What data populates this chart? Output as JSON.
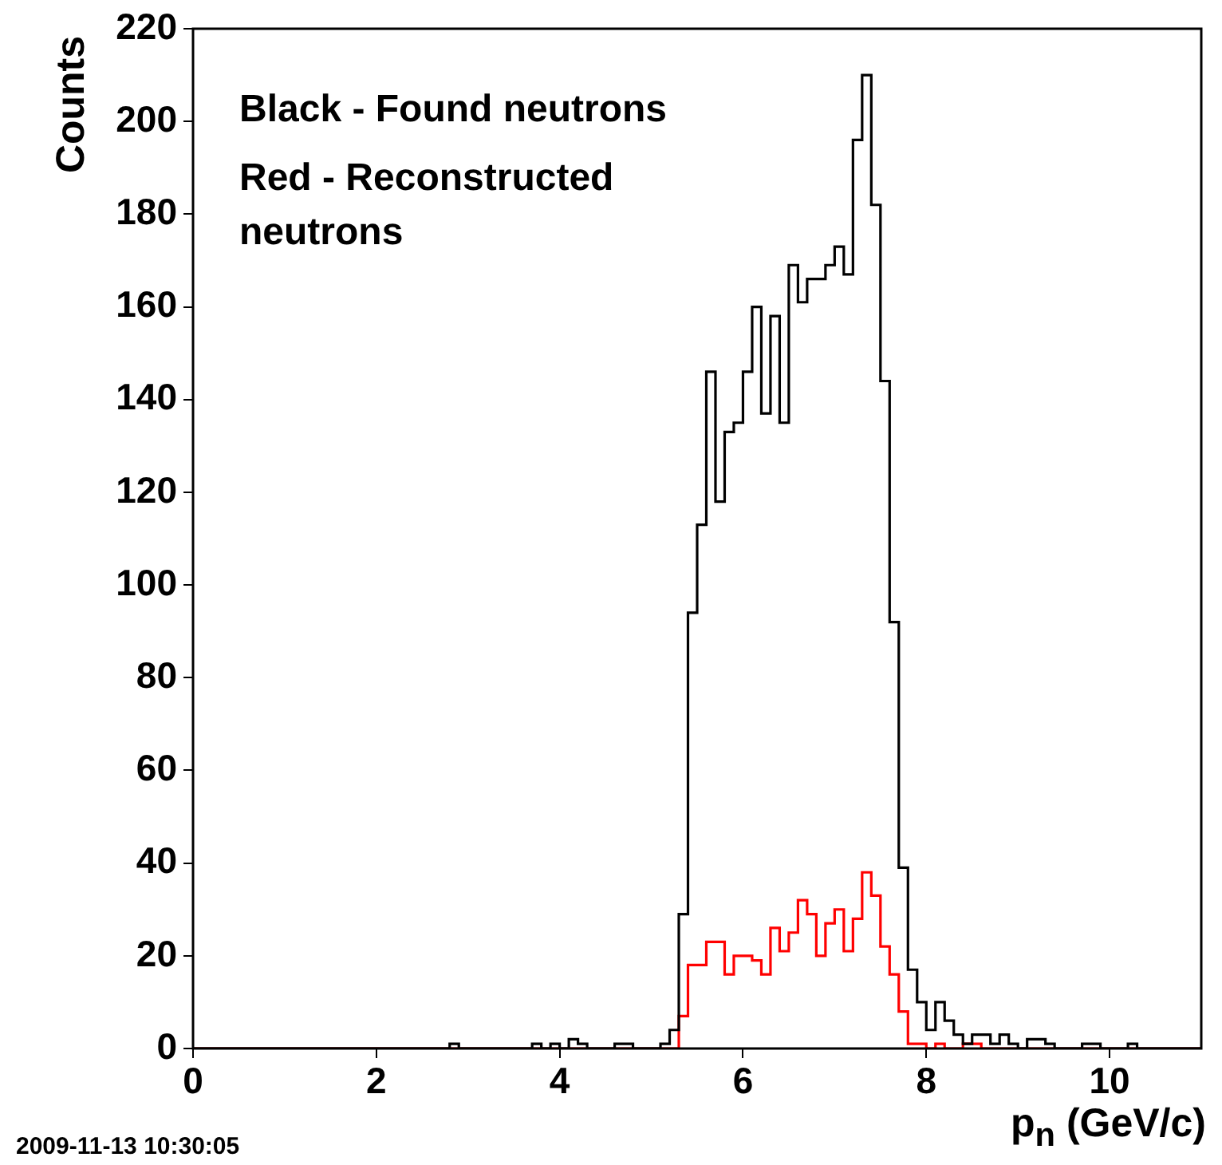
{
  "chart_data": {
    "type": "histogram",
    "xlabel": "p$_{n}$ (GeV/c)",
    "ylabel": "Counts",
    "annotations": [
      "Black - Found neutrons",
      "Red - Reconstructed neutrons",
      "2009-11-13 10:30:05"
    ],
    "bins": [
      0,
      0.1,
      0.2,
      0.3,
      0.4,
      0.5,
      0.6,
      0.7,
      0.8,
      0.9,
      1,
      1.1,
      1.2,
      1.3,
      1.4,
      1.5,
      1.6,
      1.7,
      1.8,
      1.9,
      2,
      2.1,
      2.2,
      2.3,
      2.4,
      2.5,
      2.6,
      2.7,
      2.8,
      2.9,
      3,
      3.1,
      3.2,
      3.3,
      3.4,
      3.5,
      3.6,
      3.7,
      3.8,
      3.9,
      4,
      4.1,
      4.2,
      4.3,
      4.4,
      4.5,
      4.6,
      4.7,
      4.8,
      4.9,
      5,
      5.1,
      5.2,
      5.3,
      5.4,
      5.5,
      5.6,
      5.7,
      5.8,
      5.9,
      6,
      6.1,
      6.2,
      6.3,
      6.4,
      6.5,
      6.6,
      6.7,
      6.8,
      6.9,
      7,
      7.1,
      7.2,
      7.3,
      7.4,
      7.5,
      7.6,
      7.7,
      7.8,
      7.9,
      8,
      8.1,
      8.2,
      8.3,
      8.4,
      8.5,
      8.6,
      8.7,
      8.8,
      8.9,
      9,
      9.1,
      9.2,
      9.3,
      9.4,
      9.5,
      9.6,
      9.7,
      9.8,
      9.9,
      10,
      10.1,
      10.2,
      10.3,
      10.4,
      10.5,
      10.6,
      10.7,
      10.8,
      10.9,
      11
    ],
    "series": [
      {
        "color": "#000000",
        "values": [
          0,
          0,
          0,
          0,
          0,
          0,
          0,
          0,
          0,
          0,
          0,
          0,
          0,
          0,
          0,
          0,
          0,
          0,
          0,
          0,
          0,
          0,
          0,
          0,
          0,
          0,
          0,
          0,
          1,
          0,
          0,
          0,
          0,
          0,
          0,
          0,
          0,
          1,
          0,
          1,
          0,
          2,
          1,
          0,
          0,
          0,
          1,
          1,
          0,
          0,
          0,
          1,
          4,
          29,
          94,
          113,
          146,
          118,
          133,
          135,
          146,
          160,
          137,
          158,
          135,
          169,
          161,
          166,
          166,
          169,
          173,
          167,
          196,
          210,
          182,
          144,
          92,
          39,
          17,
          10,
          4,
          10,
          6,
          3,
          1,
          3,
          3,
          1,
          3,
          1,
          0,
          2,
          2,
          1,
          0,
          0,
          0,
          1,
          1,
          0,
          0,
          0,
          1,
          0,
          0,
          0,
          0,
          0,
          0,
          0
        ]
      },
      {
        "color": "#ff0000",
        "values": [
          0,
          0,
          0,
          0,
          0,
          0,
          0,
          0,
          0,
          0,
          0,
          0,
          0,
          0,
          0,
          0,
          0,
          0,
          0,
          0,
          0,
          0,
          0,
          0,
          0,
          0,
          0,
          0,
          0,
          0,
          0,
          0,
          0,
          0,
          0,
          0,
          0,
          0,
          0,
          0,
          0,
          0,
          0,
          0,
          0,
          0,
          0,
          0,
          0,
          0,
          0,
          0,
          0,
          7,
          18,
          18,
          23,
          23,
          16,
          20,
          20,
          19,
          16,
          26,
          21,
          25,
          32,
          29,
          20,
          27,
          30,
          21,
          28,
          38,
          33,
          22,
          16,
          8,
          1,
          1,
          0,
          1,
          0,
          0,
          1,
          1,
          0,
          0,
          0,
          0,
          0,
          0,
          0,
          0,
          0,
          0,
          0,
          0,
          0,
          0,
          0,
          0,
          0,
          0,
          0,
          0,
          0,
          0,
          0,
          0
        ]
      }
    ],
    "xlim": [
      0,
      11
    ],
    "xticks": [
      0,
      2,
      4,
      6,
      8,
      10
    ],
    "ylim": [
      0,
      220
    ],
    "yticks": [
      0,
      20,
      40,
      60,
      80,
      100,
      120,
      140,
      160,
      180,
      200,
      220
    ],
    "grid": false,
    "legend": false
  }
}
